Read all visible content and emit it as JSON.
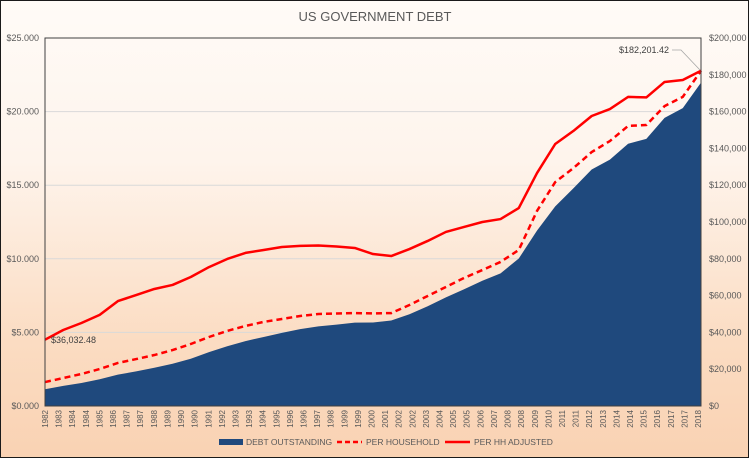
{
  "chart_data": {
    "type": "area+line",
    "title": "US GOVERNMENT DEBT",
    "x": [
      1982,
      1983,
      1984,
      1985,
      1986,
      1987,
      1988,
      1989,
      1990,
      1991,
      1992,
      1993,
      1994,
      1995,
      1996,
      1997,
      1998,
      1999,
      2000,
      2001,
      2002,
      2003,
      2004,
      2005,
      2006,
      2007,
      2008,
      2009,
      2010,
      2011,
      2012,
      2013,
      2014,
      2015,
      2016,
      2017,
      2018
    ],
    "x_tick_labels": [
      "1982",
      "1983",
      "1984",
      "1984",
      "1985",
      "1986",
      "1987",
      "1987",
      "1988",
      "1989",
      "1990",
      "1990",
      "1991",
      "1992",
      "1993",
      "1993",
      "1994",
      "1995",
      "1996",
      "1996",
      "1997",
      "1998",
      "1999",
      "1999",
      "2000",
      "2001",
      "2002",
      "2002",
      "2003",
      "2004",
      "2005",
      "2005",
      "2006",
      "2007",
      "2008",
      "2008",
      "2009",
      "2010",
      "2011",
      "2011",
      "2012",
      "2013",
      "2014",
      "2014",
      "2015",
      "2016",
      "2017",
      "2017",
      "2018"
    ],
    "y_left": {
      "ylim": [
        0,
        25
      ],
      "ticks": [
        "$0.000",
        "$5.000",
        "$10.000",
        "$15.000",
        "$20.000",
        "$25.000"
      ]
    },
    "y_right": {
      "ylim": [
        0,
        200000
      ],
      "ticks": [
        "$0",
        "$20,000",
        "$40,000",
        "$60,000",
        "$80,000",
        "$100,000",
        "$120,000",
        "$140,000",
        "$160,000",
        "$180,000",
        "$200,000"
      ]
    },
    "grid": true,
    "legend": "bottom",
    "series": [
      {
        "name": "DEBT OUTSTANDING",
        "type": "area",
        "axis": "left",
        "color": "#1f497d",
        "values": [
          1.14,
          1.37,
          1.56,
          1.82,
          2.13,
          2.35,
          2.6,
          2.87,
          3.21,
          3.66,
          4.06,
          4.41,
          4.69,
          4.97,
          5.22,
          5.41,
          5.53,
          5.66,
          5.67,
          5.81,
          6.23,
          6.78,
          7.38,
          7.93,
          8.51,
          9.01,
          10.02,
          11.91,
          13.56,
          14.79,
          16.07,
          16.74,
          17.82,
          18.15,
          19.57,
          20.24,
          21.97
        ]
      },
      {
        "name": "PER HOUSEHOLD",
        "type": "line",
        "style": "dashed",
        "axis": "right",
        "color": "#ff0000",
        "values": [
          13000,
          15200,
          17400,
          20100,
          23400,
          25500,
          27700,
          30400,
          33700,
          37500,
          40800,
          43500,
          45700,
          47300,
          48900,
          50000,
          50300,
          50500,
          50300,
          50500,
          54900,
          59800,
          64700,
          69600,
          73900,
          78300,
          84800,
          106000,
          121700,
          129300,
          138000,
          144000,
          152200,
          152700,
          163000,
          168000,
          182201.42
        ]
      },
      {
        "name": "PER HH ADJUSTED",
        "type": "line",
        "style": "solid",
        "axis": "right",
        "color": "#ff0000",
        "values": [
          36032.48,
          41300,
          45100,
          49500,
          57000,
          60300,
          63600,
          65800,
          70100,
          75500,
          79900,
          83200,
          84800,
          86400,
          87000,
          87200,
          86700,
          85900,
          82600,
          81500,
          85300,
          89700,
          94600,
          97300,
          100000,
          101600,
          107600,
          126600,
          142400,
          149500,
          157600,
          161400,
          168000,
          167700,
          176100,
          177200,
          182201.42
        ]
      }
    ],
    "annotations": {
      "start": "$36,032.48",
      "end": "$182,201.42"
    }
  }
}
